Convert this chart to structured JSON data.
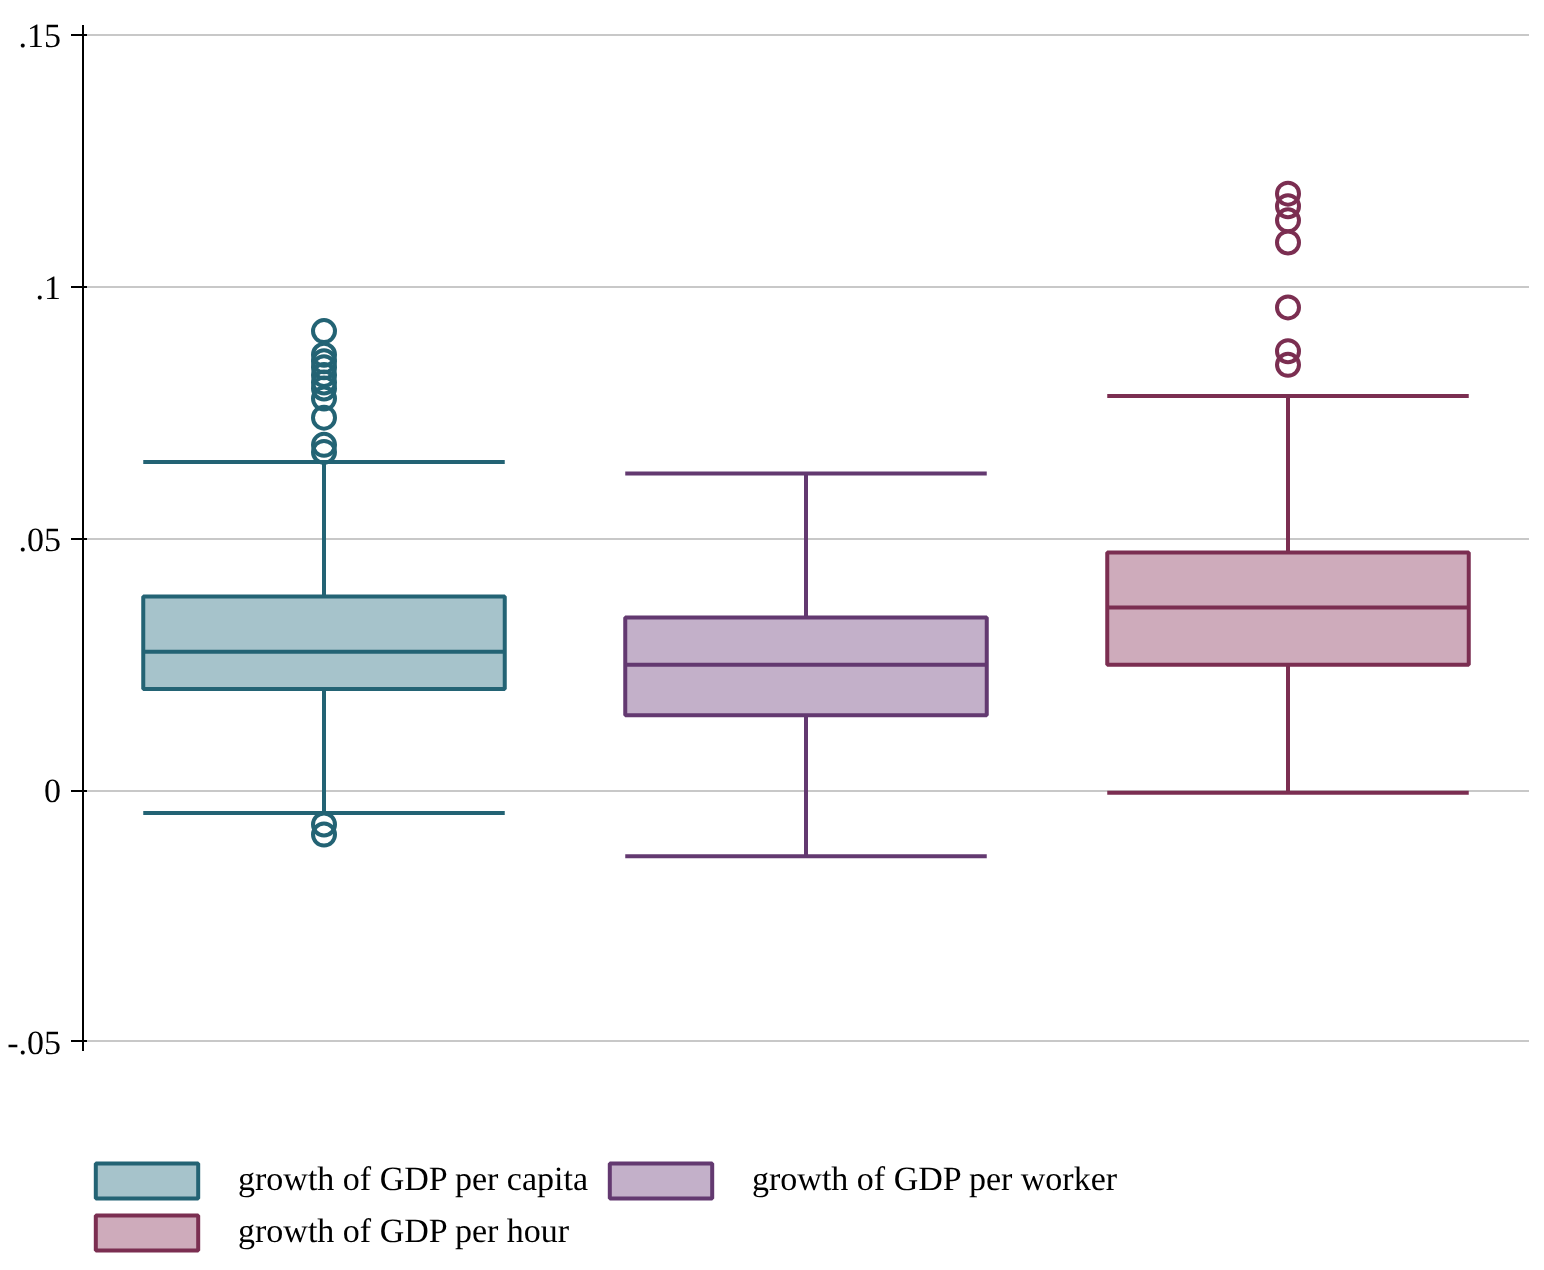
{
  "chart_data": {
    "type": "box",
    "categories": [
      null
    ],
    "series": [
      {
        "name": "growth of GDP per capita",
        "color": "#a6c3cb",
        "boxes": [
          {
            "low": -0.0045,
            "q1": 0.0201,
            "median": 0.0275,
            "q3": 0.0385,
            "high": 0.0652,
            "outliers": [
              0.0912,
              0.0865,
              0.0852,
              0.084,
              0.0825,
              0.081,
              0.0798,
              0.0778,
              0.074,
              0.0686,
              0.0672,
              -0.0068,
              -0.0088
            ]
          }
        ]
      },
      {
        "name": "growth of GDP per worker",
        "color": "#c3b0c9",
        "boxes": [
          {
            "low": -0.0131,
            "q1": 0.0149,
            "median": 0.0249,
            "q3": 0.0343,
            "high": 0.0629
          }
        ]
      },
      {
        "name": "growth of GDP per hour",
        "color": "#ceabbb",
        "boxes": [
          {
            "low": -0.0005,
            "q1": 0.0249,
            "median": 0.0363,
            "q3": 0.0472,
            "high": 0.0783,
            "outliers": [
              0.1185,
              0.116,
              0.1132,
              0.1088,
              0.0959,
              0.0872,
              0.0845
            ]
          }
        ]
      }
    ],
    "ylim": [
      -0.0516,
      0.152
    ],
    "yticks": [
      {
        "value": -0.05,
        "label": "-.05"
      },
      {
        "value": 0,
        "label": "0"
      },
      {
        "value": 0.05,
        "label": ".05"
      },
      {
        "value": 0.1,
        "label": ".1"
      },
      {
        "value": 0.15,
        "label": ".15"
      }
    ],
    "grid": "y",
    "legend": "bottom",
    "marker": "circle"
  }
}
